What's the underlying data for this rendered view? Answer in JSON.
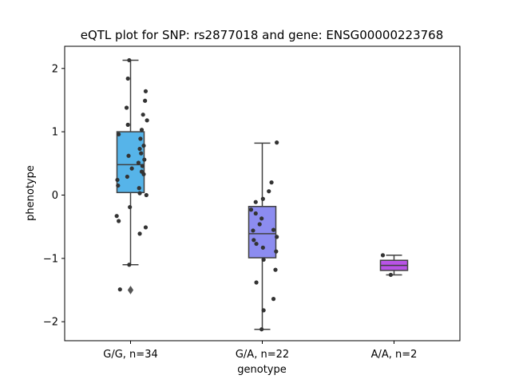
{
  "chart_data": {
    "type": "box",
    "title": "eQTL plot for SNP: rs2877018 and gene: ENSG00000223768",
    "xlabel": "genotype",
    "ylabel": "phenotype",
    "ylim": [
      -2.3,
      2.35
    ],
    "yticks": [
      -2,
      -1,
      0,
      1,
      2
    ],
    "ytick_labels": [
      "−2",
      "−1",
      "0",
      "1",
      "2"
    ],
    "grid": false,
    "categories": [
      "G/G, n=34",
      "G/A, n=22",
      "A/A, n=2"
    ],
    "boxes": [
      {
        "category": "G/G, n=34",
        "color": "#56b4e9",
        "whisker_low": -1.1,
        "q1": 0.04,
        "median": 0.48,
        "q3": 1.0,
        "whisker_high": 2.13,
        "outliers": [
          -1.5
        ]
      },
      {
        "category": "G/A, n=22",
        "color": "#8c8cf0",
        "whisker_low": -2.12,
        "q1": -0.99,
        "median": -0.61,
        "q3": -0.18,
        "whisker_high": 0.82,
        "outliers": []
      },
      {
        "category": "A/A, n=2",
        "color": "#b853e6",
        "whisker_low": -1.26,
        "q1": -1.19,
        "median": -1.11,
        "q3": -1.03,
        "whisker_high": -0.95,
        "outliers": []
      }
    ],
    "points": [
      [
        {
          "dx": -0.02,
          "y": 2.13
        },
        {
          "dx": -0.04,
          "y": 1.84
        },
        {
          "dx": 0.23,
          "y": 1.64
        },
        {
          "dx": 0.22,
          "y": 1.49
        },
        {
          "dx": -0.06,
          "y": 1.38
        },
        {
          "dx": 0.19,
          "y": 1.27
        },
        {
          "dx": 0.25,
          "y": 1.18
        },
        {
          "dx": -0.04,
          "y": 1.11
        },
        {
          "dx": 0.17,
          "y": 1.03
        },
        {
          "dx": -0.18,
          "y": 0.96
        },
        {
          "dx": 0.15,
          "y": 0.89
        },
        {
          "dx": 0.2,
          "y": 0.78
        },
        {
          "dx": 0.14,
          "y": 0.73
        },
        {
          "dx": 0.16,
          "y": 0.66
        },
        {
          "dx": -0.03,
          "y": 0.62
        },
        {
          "dx": 0.21,
          "y": 0.56
        },
        {
          "dx": 0.12,
          "y": 0.51
        },
        {
          "dx": 0.18,
          "y": 0.46
        },
        {
          "dx": 0.02,
          "y": 0.42
        },
        {
          "dx": 0.17,
          "y": 0.37
        },
        {
          "dx": 0.2,
          "y": 0.33
        },
        {
          "dx": -0.05,
          "y": 0.29
        },
        {
          "dx": -0.2,
          "y": 0.24
        },
        {
          "dx": -0.19,
          "y": 0.15
        },
        {
          "dx": 0.13,
          "y": 0.11
        },
        {
          "dx": 0.14,
          "y": 0.03
        },
        {
          "dx": 0.24,
          "y": 0.0
        },
        {
          "dx": -0.01,
          "y": -0.19
        },
        {
          "dx": -0.21,
          "y": -0.33
        },
        {
          "dx": -0.18,
          "y": -0.41
        },
        {
          "dx": 0.23,
          "y": -0.51
        },
        {
          "dx": 0.14,
          "y": -0.61
        },
        {
          "dx": -0.02,
          "y": -1.1
        },
        {
          "dx": -0.16,
          "y": -1.49
        }
      ],
      [
        {
          "dx": 0.22,
          "y": 0.83
        },
        {
          "dx": 0.14,
          "y": 0.2
        },
        {
          "dx": 0.1,
          "y": 0.06
        },
        {
          "dx": 0.01,
          "y": -0.06
        },
        {
          "dx": -0.1,
          "y": -0.11
        },
        {
          "dx": -0.17,
          "y": -0.23
        },
        {
          "dx": -0.1,
          "y": -0.29
        },
        {
          "dx": -0.01,
          "y": -0.37
        },
        {
          "dx": -0.04,
          "y": -0.46
        },
        {
          "dx": 0.17,
          "y": -0.55
        },
        {
          "dx": 0.22,
          "y": -0.66
        },
        {
          "dx": -0.13,
          "y": -0.71
        },
        {
          "dx": -0.09,
          "y": -0.77
        },
        {
          "dx": 0.01,
          "y": -0.83
        },
        {
          "dx": 0.21,
          "y": -0.89
        },
        {
          "dx": 0.02,
          "y": -1.02
        },
        {
          "dx": 0.2,
          "y": -1.18
        },
        {
          "dx": -0.09,
          "y": -1.38
        },
        {
          "dx": 0.17,
          "y": -1.64
        },
        {
          "dx": 0.02,
          "y": -1.82
        },
        {
          "dx": -0.01,
          "y": -2.12
        },
        {
          "dx": -0.14,
          "y": -0.56
        }
      ],
      [
        {
          "dx": -0.17,
          "y": -0.95
        },
        {
          "dx": -0.05,
          "y": -1.26
        }
      ]
    ]
  }
}
